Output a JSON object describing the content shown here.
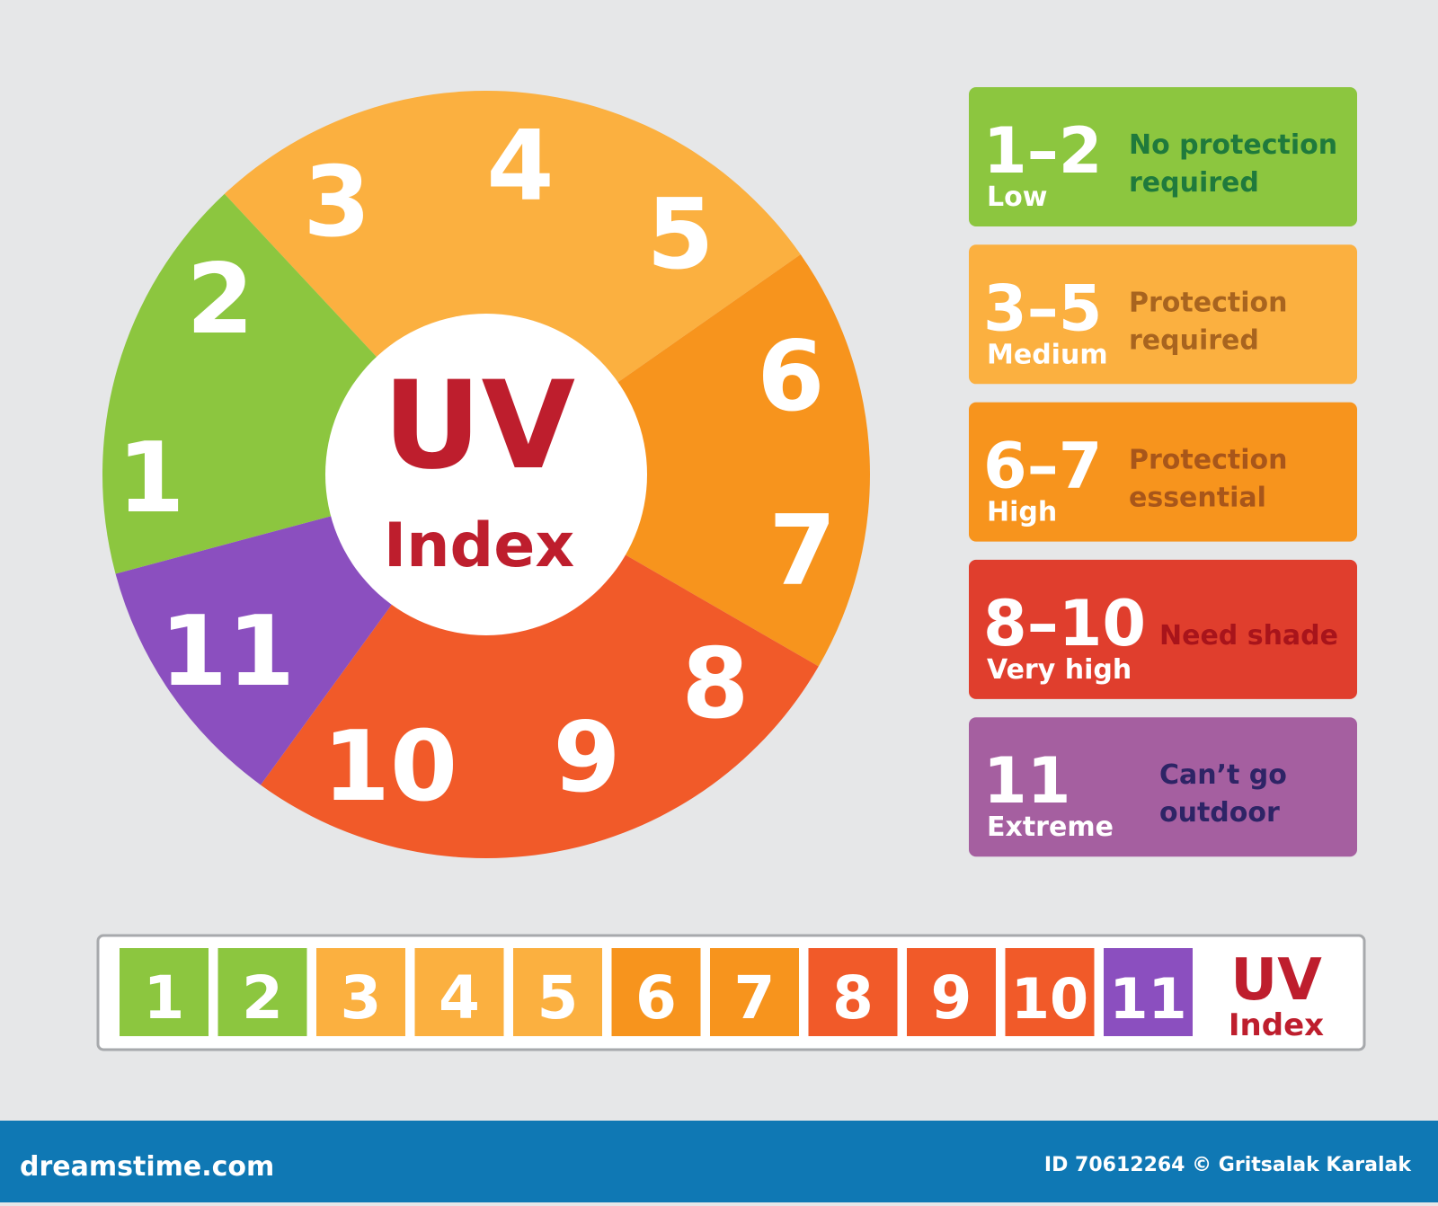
{
  "wheel": {
    "numbers": [
      "1",
      "2",
      "3",
      "4",
      "5",
      "6",
      "7",
      "8",
      "9",
      "10",
      "11"
    ],
    "center": {
      "title": "UV",
      "subtitle": "Index"
    }
  },
  "levels": [
    {
      "range": "1–2",
      "name": "Low",
      "advice": [
        "No protection",
        "required"
      ]
    },
    {
      "range": "3–5",
      "name": "Medium",
      "advice": [
        "Protection",
        "required"
      ]
    },
    {
      "range": "6–7",
      "name": "High",
      "advice": [
        "Protection",
        "essential"
      ]
    },
    {
      "range": "8–10",
      "name": "Very high",
      "advice": [
        "Need shade"
      ]
    },
    {
      "range": "11",
      "name": "Extreme",
      "advice": [
        "Can’t go",
        "outdoor"
      ]
    }
  ],
  "scale": {
    "cells": [
      "1",
      "2",
      "3",
      "4",
      "5",
      "6",
      "7",
      "8",
      "9",
      "10",
      "11"
    ],
    "label": {
      "title": "UV",
      "subtitle": "Index"
    }
  },
  "footer": {
    "site": "dreamstime.com",
    "credit": "ID 70612264 © Gritsalak Karalak"
  }
}
